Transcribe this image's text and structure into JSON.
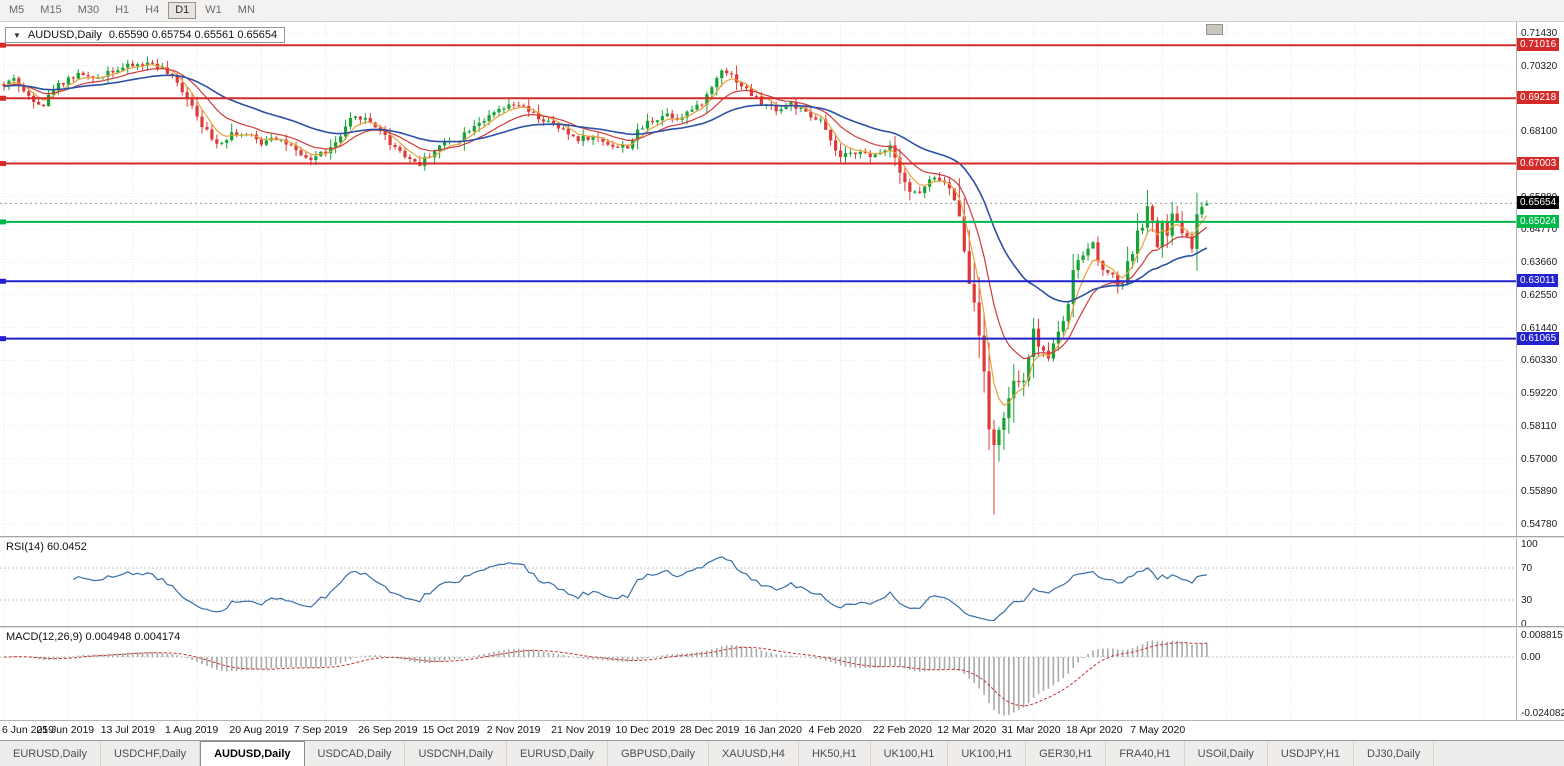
{
  "toolbar": {
    "timeframes": [
      "M5",
      "M15",
      "M30",
      "H1",
      "H4",
      "D1",
      "W1",
      "MN"
    ],
    "active": "D1"
  },
  "chart": {
    "symbol": "AUDUSD,Daily",
    "dropdown_icon": "▼",
    "ohlc_text": "0.65590 0.65754 0.65561 0.65654",
    "price_axis": {
      "max": 0.7143,
      "min": 0.5478,
      "labels": [
        "0.71430",
        "0.70320",
        "0.69210",
        "0.68100",
        "0.66990",
        "0.65880",
        "0.64770",
        "0.63660",
        "0.62550",
        "0.61440",
        "0.60330",
        "0.59220",
        "0.58110",
        "0.57000",
        "0.55890",
        "0.54780"
      ]
    },
    "hlines": [
      {
        "label": "0.71016",
        "price": 0.71016,
        "color": "#d42a2a",
        "width": 2
      },
      {
        "label": "0.69218",
        "price": 0.69218,
        "color": "#d42a2a",
        "width": 2
      },
      {
        "label": "0.67003",
        "price": 0.67003,
        "color": "#d42a2a",
        "width": 2
      },
      {
        "label": "0.65024",
        "price": 0.65024,
        "color": "#00b84a",
        "width": 2
      },
      {
        "label": "0.63011",
        "price": 0.63011,
        "color": "#2222cf",
        "width": 2
      },
      {
        "label": "0.61065",
        "price": 0.61065,
        "color": "#2222cf",
        "width": 2
      }
    ],
    "current_price": {
      "label": "0.65654",
      "price": 0.65654,
      "color": "#000000"
    }
  },
  "rsi": {
    "label": "RSI(14) 60.0452",
    "period": 14,
    "value": 60.0452,
    "axis_labels": [
      100,
      70,
      30,
      0
    ],
    "levels": [
      70,
      30
    ],
    "color": "#3a6ea8"
  },
  "macd": {
    "label": "MACD(12,26,9) 0.004948 0.004174",
    "fast": 12,
    "slow": 26,
    "signal": 9,
    "macd_value": 0.004948,
    "signal_value": 0.004174,
    "axis_labels": [
      "0.008815",
      "0.00",
      "-0.024082"
    ],
    "histogram_color": "#a9a9a9",
    "signal_color": "#c03434"
  },
  "dates": [
    "6 Jun 2019",
    "25 Jun 2019",
    "13 Jul 2019",
    "1 Aug 2019",
    "20 Aug 2019",
    "7 Sep 2019",
    "26 Sep 2019",
    "15 Oct 2019",
    "2 Nov 2019",
    "21 Nov 2019",
    "10 Dec 2019",
    "28 Dec 2019",
    "16 Jan 2020",
    "4 Feb 2020",
    "22 Feb 2020",
    "12 Mar 2020",
    "31 Mar 2020",
    "18 Apr 2020",
    "7 May 2020"
  ],
  "date_step": 13,
  "tabs": {
    "items": [
      "EURUSD,Daily",
      "USDCHF,Daily",
      "AUDUSD,Daily",
      "USDCAD,Daily",
      "USDCNH,Daily",
      "EURUSD,Daily",
      "GBPUSD,Daily",
      "XAUUSD,H4",
      "HK50,H1",
      "UK100,H1",
      "UK100,H1",
      "GER30,H1",
      "FRA40,H1",
      "USOil,Daily",
      "USDJPY,H1",
      "DJ30,Daily"
    ],
    "active_index": 2
  },
  "chart_data": {
    "type": "candlestick",
    "symbol": "AUDUSD",
    "timeframe": "Daily",
    "candle_count": 244,
    "price_range": {
      "max": 0.7143,
      "min": 0.5478
    },
    "colors": {
      "up": "#16a334",
      "down": "#df3838"
    },
    "ma_lines": [
      {
        "type": "ema",
        "period": 5,
        "color": "#e8a23c",
        "width": 1.2
      },
      {
        "type": "ema",
        "period": 13,
        "color": "#d03a3a",
        "width": 1.2
      },
      {
        "type": "ema",
        "period": 34,
        "color": "#2b50a5",
        "width": 1.6
      }
    ],
    "close_anchors": [
      [
        0,
        0.696
      ],
      [
        2,
        0.6995
      ],
      [
        4,
        0.694
      ],
      [
        6,
        0.692
      ],
      [
        8,
        0.69
      ],
      [
        10,
        0.6955
      ],
      [
        13,
        0.699
      ],
      [
        16,
        0.7005
      ],
      [
        18,
        0.698
      ],
      [
        21,
        0.7015
      ],
      [
        24,
        0.7025
      ],
      [
        27,
        0.7035
      ],
      [
        30,
        0.704
      ],
      [
        32,
        0.702
      ],
      [
        34,
        0.699
      ],
      [
        36,
        0.695
      ],
      [
        38,
        0.69
      ],
      [
        40,
        0.6835
      ],
      [
        42,
        0.678
      ],
      [
        44,
        0.6775
      ],
      [
        46,
        0.6805
      ],
      [
        48,
        0.68
      ],
      [
        50,
        0.679
      ],
      [
        52,
        0.677
      ],
      [
        54,
        0.6795
      ],
      [
        56,
        0.678
      ],
      [
        58,
        0.6755
      ],
      [
        60,
        0.672
      ],
      [
        62,
        0.6715
      ],
      [
        64,
        0.6735
      ],
      [
        66,
        0.675
      ],
      [
        68,
        0.679
      ],
      [
        70,
        0.6845
      ],
      [
        72,
        0.686
      ],
      [
        74,
        0.684
      ],
      [
        76,
        0.6815
      ],
      [
        78,
        0.677
      ],
      [
        80,
        0.6745
      ],
      [
        82,
        0.6715
      ],
      [
        84,
        0.67
      ],
      [
        86,
        0.673
      ],
      [
        88,
        0.676
      ],
      [
        90,
        0.6775
      ],
      [
        92,
        0.6785
      ],
      [
        94,
        0.682
      ],
      [
        96,
        0.6845
      ],
      [
        98,
        0.6855
      ],
      [
        100,
        0.688
      ],
      [
        102,
        0.689
      ],
      [
        104,
        0.69
      ],
      [
        106,
        0.6875
      ],
      [
        108,
        0.6855
      ],
      [
        110,
        0.684
      ],
      [
        112,
        0.682
      ],
      [
        114,
        0.68
      ],
      [
        116,
        0.6785
      ],
      [
        118,
        0.679
      ],
      [
        120,
        0.6785
      ],
      [
        122,
        0.677
      ],
      [
        124,
        0.6755
      ],
      [
        126,
        0.676
      ],
      [
        128,
        0.6805
      ],
      [
        130,
        0.684
      ],
      [
        132,
        0.6855
      ],
      [
        134,
        0.687
      ],
      [
        136,
        0.6855
      ],
      [
        138,
        0.6875
      ],
      [
        140,
        0.689
      ],
      [
        142,
        0.693
      ],
      [
        144,
        0.699
      ],
      [
        145,
        0.7025
      ],
      [
        147,
        0.7
      ],
      [
        149,
        0.6965
      ],
      [
        151,
        0.6935
      ],
      [
        153,
        0.6905
      ],
      [
        155,
        0.689
      ],
      [
        157,
        0.6885
      ],
      [
        159,
        0.6905
      ],
      [
        161,
        0.688
      ],
      [
        163,
        0.6855
      ],
      [
        165,
        0.6845
      ],
      [
        167,
        0.677
      ],
      [
        169,
        0.672
      ],
      [
        171,
        0.673
      ],
      [
        173,
        0.675
      ],
      [
        175,
        0.6715
      ],
      [
        177,
        0.674
      ],
      [
        179,
        0.6765
      ],
      [
        181,
        0.668
      ],
      [
        183,
        0.6605
      ],
      [
        185,
        0.66
      ],
      [
        187,
        0.664
      ],
      [
        189,
        0.665
      ],
      [
        191,
        0.6615
      ],
      [
        193,
        0.6525
      ],
      [
        195,
        0.629
      ],
      [
        196,
        0.623
      ],
      [
        197,
        0.612
      ],
      [
        198,
        0.6
      ],
      [
        199,
        0.5795
      ],
      [
        200,
        0.5745
      ],
      [
        201,
        0.58
      ],
      [
        202,
        0.5835
      ],
      [
        203,
        0.59
      ],
      [
        204,
        0.5965
      ],
      [
        205,
        0.5955
      ],
      [
        206,
        0.596
      ],
      [
        207,
        0.605
      ],
      [
        208,
        0.613
      ],
      [
        209,
        0.609
      ],
      [
        210,
        0.6055
      ],
      [
        211,
        0.6045
      ],
      [
        212,
        0.609
      ],
      [
        213,
        0.6135
      ],
      [
        214,
        0.617
      ],
      [
        215,
        0.6225
      ],
      [
        216,
        0.633
      ],
      [
        217,
        0.6365
      ],
      [
        218,
        0.639
      ],
      [
        219,
        0.641
      ],
      [
        220,
        0.6435
      ],
      [
        221,
        0.6365
      ],
      [
        222,
        0.635
      ],
      [
        223,
        0.6335
      ],
      [
        224,
        0.632
      ],
      [
        225,
        0.629
      ],
      [
        226,
        0.6295
      ],
      [
        227,
        0.637
      ],
      [
        228,
        0.64
      ],
      [
        229,
        0.6465
      ],
      [
        230,
        0.649
      ],
      [
        231,
        0.655
      ],
      [
        232,
        0.651
      ],
      [
        233,
        0.6415
      ],
      [
        234,
        0.6495
      ],
      [
        235,
        0.6455
      ],
      [
        236,
        0.653
      ],
      [
        237,
        0.6495
      ],
      [
        238,
        0.647
      ],
      [
        239,
        0.645
      ],
      [
        240,
        0.6415
      ],
      [
        241,
        0.6525
      ],
      [
        242,
        0.6559
      ],
      [
        243,
        0.65654
      ]
    ],
    "wick_overrides": [
      {
        "i": 200,
        "low": 0.551
      }
    ],
    "last_candle": {
      "o": 0.6559,
      "h": 0.65754,
      "l": 0.65561,
      "c": 0.65654
    }
  }
}
